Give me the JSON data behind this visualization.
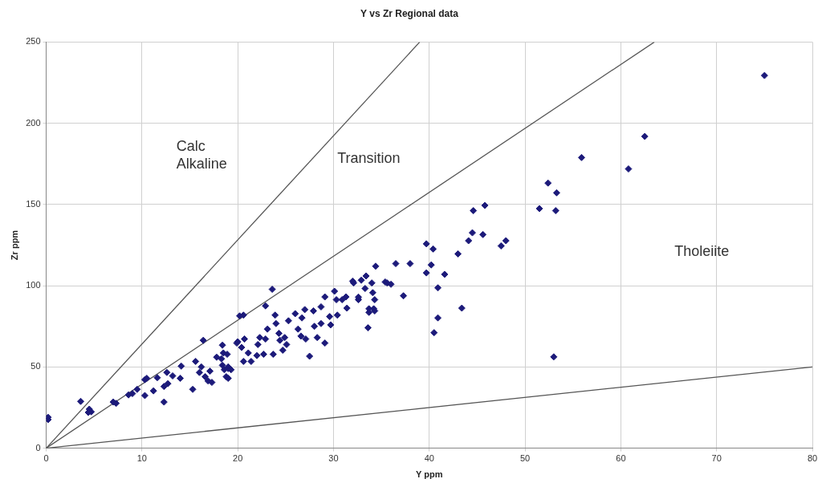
{
  "chart_data": {
    "type": "scatter",
    "title": "Y vs Zr Regional data",
    "xlabel": "Y ppm",
    "ylabel": "Zr ppm",
    "xlim": [
      0,
      80
    ],
    "xticks": [
      0,
      10,
      20,
      30,
      40,
      50,
      60,
      70,
      80
    ],
    "ylim": [
      0,
      250
    ],
    "yticks": [
      0,
      50,
      100,
      150,
      200,
      250
    ],
    "grid": true,
    "legend": false,
    "annotations": [
      "Calc\nAlkaline",
      "Transition",
      "Tholeiite"
    ],
    "series": [
      {
        "marker": "diamond",
        "color": "#1c1a7a",
        "x": [
          0.2,
          0.2,
          3.6,
          4.5,
          4.7,
          4.4,
          7.0,
          7.3,
          8.6,
          9.0,
          9.5,
          10.3,
          10.3,
          10.5,
          11.2,
          11.6,
          12.3,
          12.3,
          12.7,
          12.6,
          13.2,
          14.0,
          14.1,
          15.3,
          15.6,
          16.2,
          16.4,
          16.0,
          16.6,
          16.9,
          17.1,
          17.8,
          18.4,
          18.5,
          18.4,
          18.6,
          19.0,
          18.8,
          19.9,
          20.2,
          23.6,
          22.9,
          20.6,
          17.3,
          18.3,
          18.9,
          19.0,
          19.3,
          19.0,
          20.0,
          20.4,
          20.7,
          20.6,
          21.4,
          21.1,
          22.1,
          22.3,
          22.9,
          22.0,
          22.7,
          23.7,
          23.1,
          23.9,
          24.0,
          24.3,
          24.4,
          24.7,
          25.1,
          25.3,
          24.9,
          26.0,
          26.3,
          26.6,
          26.7,
          27.0,
          27.1,
          27.5,
          27.9,
          28.0,
          28.3,
          28.7,
          28.7,
          29.1,
          29.1,
          29.6,
          29.7,
          30.1,
          30.3,
          30.4,
          30.9,
          31.3,
          31.4,
          32.1,
          32.6,
          32.9,
          33.3,
          33.4,
          33.6,
          33.7,
          34.0,
          34.1,
          34.3,
          34.4,
          34.3,
          35.6,
          36.0,
          75.0,
          62.5,
          55.9,
          60.8,
          52.4,
          53.3,
          51.5,
          53.2,
          45.8,
          44.6,
          44.5,
          45.6,
          44.1,
          47.5,
          48.0,
          39.7,
          40.4,
          43.0,
          36.5,
          38.0,
          40.2,
          39.7,
          41.6,
          40.9,
          37.3,
          43.4,
          40.9,
          40.5,
          53.0,
          33.7,
          34.2,
          32.6,
          35.4,
          32.0
        ],
        "values": [
          17.6,
          19,
          28.8,
          24,
          22.4,
          22,
          28.4,
          27.6,
          32.8,
          33.6,
          36.2,
          32.4,
          42.2,
          43,
          35.3,
          43.4,
          28.4,
          38,
          39.7,
          46.6,
          44.5,
          43,
          50.5,
          36.2,
          53.4,
          50,
          66.4,
          46.6,
          44,
          41.4,
          47.4,
          56,
          63.4,
          58.6,
          51,
          48.3,
          49,
          44,
          64.7,
          81.4,
          97.8,
          87.6,
          81.9,
          40.5,
          55,
          57.8,
          50,
          48.3,
          43,
          65.5,
          62,
          67.2,
          53.4,
          53.4,
          58.6,
          63.8,
          68.1,
          67.2,
          57,
          57.8,
          57.8,
          73.3,
          81.9,
          76.7,
          70.7,
          66.4,
          60.3,
          63.8,
          78.4,
          68.1,
          82.8,
          73.3,
          69,
          80.2,
          85.3,
          67.2,
          56.6,
          84.5,
          75,
          68.1,
          87,
          76.7,
          64.7,
          93.1,
          81,
          75.9,
          96.6,
          91.4,
          81.9,
          91.4,
          93.1,
          86.2,
          101.7,
          91.4,
          103.4,
          98.3,
          106,
          74.1,
          83.6,
          101.7,
          95.7,
          84.5,
          112,
          91.4,
          101.7,
          100.9,
          229.4,
          191.9,
          178.9,
          171.9,
          163.2,
          157.2,
          147.5,
          146.2,
          149.4,
          146.2,
          132.6,
          131.5,
          127.7,
          124.5,
          127.7,
          125.8,
          122.6,
          119.6,
          113.6,
          113.6,
          112.8,
          107.9,
          107,
          98.7,
          93.8,
          86.2,
          80.2,
          71.1,
          56.2,
          85.8,
          85.8,
          93,
          102.3,
          102.8
        ]
      },
      {
        "type": "line",
        "marker": "none",
        "color": "#555555",
        "x": [
          0,
          39
        ],
        "values": [
          0,
          250
        ]
      },
      {
        "type": "line",
        "marker": "none",
        "color": "#555555",
        "x": [
          0,
          63.5
        ],
        "values": [
          0,
          250
        ]
      },
      {
        "type": "line",
        "marker": "none",
        "color": "#555555",
        "x": [
          0,
          80
        ],
        "values": [
          0,
          50
        ]
      }
    ]
  }
}
